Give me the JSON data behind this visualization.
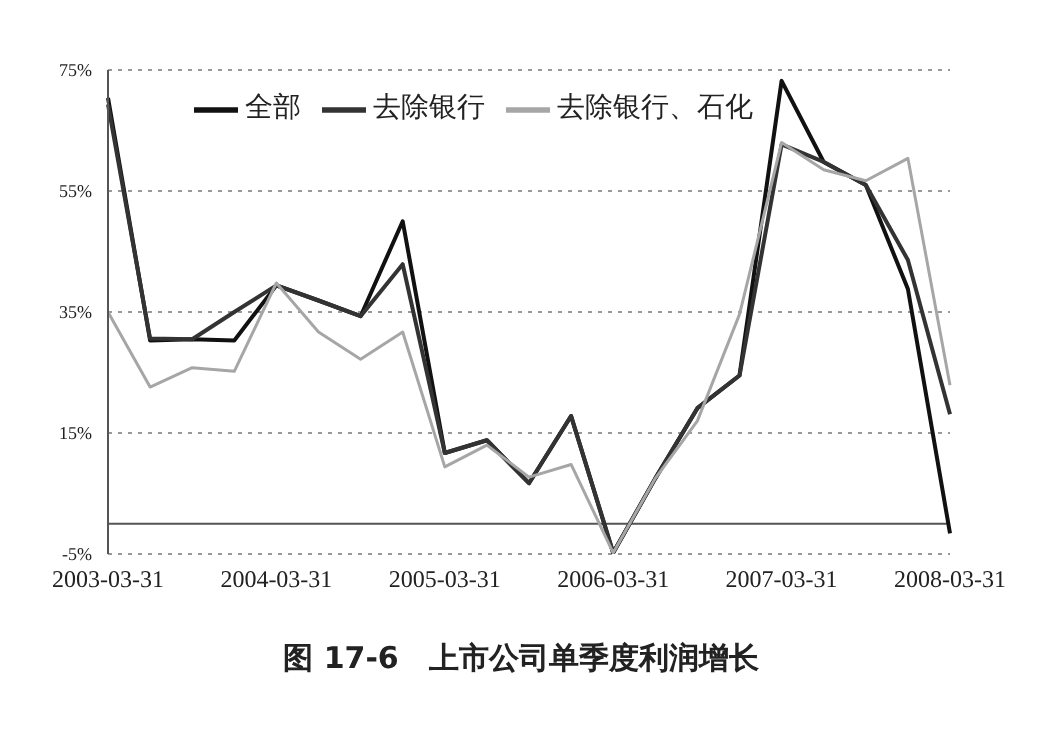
{
  "chart_data": {
    "type": "line",
    "title": "图 17-6　上市公司单季度利润增长",
    "categories": [
      "2003-03-31",
      null,
      null,
      null,
      "2004-03-31",
      null,
      null,
      null,
      "2005-03-31",
      null,
      null,
      null,
      "2006-03-31",
      null,
      null,
      null,
      "2007-03-31",
      null,
      null,
      null,
      "2008-03-31"
    ],
    "series": [
      {
        "name": "全部",
        "color": "#111111",
        "values": [
          70.4,
          30.3,
          30.5,
          30.3,
          39.4,
          36.9,
          34.3,
          50,
          11.7,
          13.8,
          6.7,
          17.8,
          -4.8,
          7.5,
          19.1,
          24.5,
          73.2,
          59.8,
          56,
          38.8,
          -1.6
        ]
      },
      {
        "name": "去除银行",
        "color": "#333333",
        "values": [
          69.3,
          30.6,
          30.5,
          35,
          39.4,
          36.9,
          34.3,
          42.9,
          11.7,
          13.8,
          6.7,
          17.8,
          -4.8,
          7.5,
          19.1,
          24.5,
          62.7,
          59.8,
          56,
          43.6,
          18.1
        ]
      },
      {
        "name": "去除银行、石化",
        "color": "#a6a6a6",
        "values": [
          35,
          22.6,
          25.8,
          25.2,
          39.8,
          31.7,
          27.2,
          31.7,
          9.4,
          13,
          7.7,
          9.8,
          -4.8,
          7.5,
          17,
          34.6,
          63,
          58.5,
          56.7,
          60.4,
          22.9
        ]
      }
    ],
    "ylim": [
      -5,
      75
    ],
    "yticks": [
      {
        "value": -5,
        "label": "-5%"
      },
      {
        "value": 15,
        "label": "15%"
      },
      {
        "value": 35,
        "label": "35%"
      },
      {
        "value": 55,
        "label": "55%"
      },
      {
        "value": 75,
        "label": "75%"
      }
    ],
    "ref_lines": [
      {
        "axis": "y",
        "value": 0,
        "label": null,
        "color": "#555555"
      }
    ],
    "grid": "y",
    "legend": "top",
    "line_style": "solid"
  }
}
